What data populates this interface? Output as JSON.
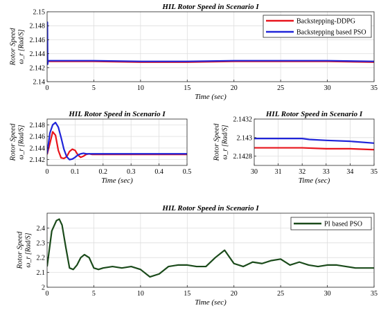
{
  "chart_data": [
    {
      "type": "line",
      "title": "HIL Rotor Speed in Scenario I",
      "xlabel": "Time (sec)",
      "ylabel": "Rotor Speed",
      "ylabel2": "ω_r [Rad/S]",
      "xlim": [
        0,
        35
      ],
      "ylim": [
        2.14,
        2.15
      ],
      "xticks": [
        "0",
        "5",
        "10",
        "15",
        "20",
        "25",
        "30",
        "35"
      ],
      "yticks": [
        "2.14",
        "2.142",
        "2.144",
        "2.146",
        "2.148",
        "2.15"
      ],
      "grid": true,
      "legend": "top-right",
      "series": [
        {
          "name": "Backstepping-DDPG",
          "color": "#e8141c",
          "x": [
            0,
            0.3,
            5,
            10,
            15,
            20,
            25,
            30,
            35
          ],
          "y": [
            2.1429,
            2.1429,
            2.1429,
            2.1428,
            2.1428,
            2.1429,
            2.1429,
            2.1429,
            2.1428
          ]
        },
        {
          "name": "Backstepping based PSO",
          "color": "#1f24d9",
          "x": [
            0,
            0.03,
            0.06,
            0.1,
            0.3,
            5,
            10,
            15,
            20,
            25,
            30,
            35
          ],
          "y": [
            2.143,
            2.1485,
            2.1425,
            2.143,
            2.143,
            2.143,
            2.1429,
            2.1429,
            2.143,
            2.143,
            2.143,
            2.1429
          ]
        }
      ]
    },
    {
      "type": "line",
      "title": "HIL Rotor Speed in Scenario I",
      "xlabel": "Time (sec)",
      "ylabel": "Rotor Speed",
      "ylabel2": "ω_r [Rad/S]",
      "xlim": [
        0,
        0.5
      ],
      "ylim": [
        2.141,
        2.149
      ],
      "xticks": [
        "0",
        "0.1",
        "0.2",
        "0.3",
        "0.4",
        "0.5"
      ],
      "yticks": [
        "2.142",
        "2.144",
        "2.146",
        "2.148"
      ],
      "grid": true,
      "series": [
        {
          "name": "Backstepping-DDPG",
          "color": "#e8141c",
          "x": [
            0,
            0.01,
            0.02,
            0.03,
            0.04,
            0.05,
            0.06,
            0.07,
            0.08,
            0.09,
            0.1,
            0.11,
            0.12,
            0.13,
            0.14,
            0.15,
            0.16,
            0.18,
            0.2,
            0.3,
            0.4,
            0.5
          ],
          "y": [
            2.1429,
            2.1448,
            2.1468,
            2.1462,
            2.1436,
            2.1423,
            2.1422,
            2.1425,
            2.1434,
            2.1438,
            2.1436,
            2.1428,
            2.1424,
            2.1426,
            2.1429,
            2.143,
            2.1429,
            2.1429,
            2.1429,
            2.1429,
            2.1429,
            2.1429
          ]
        },
        {
          "name": "Backstepping based PSO",
          "color": "#1f24d9",
          "x": [
            0,
            0.01,
            0.02,
            0.03,
            0.04,
            0.05,
            0.06,
            0.07,
            0.08,
            0.09,
            0.1,
            0.11,
            0.12,
            0.13,
            0.14,
            0.16,
            0.18,
            0.2,
            0.3,
            0.4,
            0.5
          ],
          "y": [
            2.143,
            2.1466,
            2.148,
            2.1484,
            2.1476,
            2.1458,
            2.1438,
            2.1425,
            2.142,
            2.1421,
            2.1424,
            2.1428,
            2.143,
            2.1431,
            2.143,
            2.143,
            2.143,
            2.143,
            2.143,
            2.143,
            2.143
          ]
        }
      ]
    },
    {
      "type": "line",
      "title": "HIL Rotor Speed in Scenario I",
      "xlabel": "Time (sec)",
      "ylabel": "Rotor Speed",
      "ylabel2": "ω_r [Rad/S]",
      "xlim": [
        30,
        35
      ],
      "ylim": [
        2.1427,
        2.1432
      ],
      "xticks": [
        "30",
        "31",
        "32",
        "33",
        "34",
        "35"
      ],
      "yticks": [
        "2.1428",
        "2.143",
        "2.1432"
      ],
      "grid": true,
      "series": [
        {
          "name": "Backstepping-DDPG",
          "color": "#e8141c",
          "x": [
            30,
            31,
            32,
            33,
            34,
            35
          ],
          "y": [
            2.14289,
            2.14289,
            2.14289,
            2.14288,
            2.14288,
            2.14287
          ]
        },
        {
          "name": "Backstepping based PSO",
          "color": "#1f24d9",
          "x": [
            30,
            31,
            32,
            32.3,
            33,
            34,
            35
          ],
          "y": [
            2.14299,
            2.14299,
            2.14299,
            2.14298,
            2.14297,
            2.14296,
            2.14294
          ]
        }
      ]
    },
    {
      "type": "line",
      "title": "HIL Rotor Speed in Scenario I",
      "xlabel": "Time (sec)",
      "ylabel": "Rotor Speed",
      "ylabel2": "ω_r [Rad/S]",
      "xlim": [
        0,
        35
      ],
      "ylim": [
        2.0,
        2.5
      ],
      "xticks": [
        "0",
        "5",
        "10",
        "15",
        "20",
        "25",
        "30",
        "35"
      ],
      "yticks": [
        "2",
        "2.1",
        "2.2",
        "2.3",
        "2.4"
      ],
      "grid": true,
      "legend": "top-right",
      "series": [
        {
          "name": "PI based PSO",
          "color": "#1a4a1a",
          "x": [
            0,
            0.5,
            1,
            1.3,
            1.6,
            2,
            2.4,
            2.8,
            3.2,
            3.6,
            4,
            4.5,
            5,
            5.5,
            6,
            7,
            8,
            9,
            10,
            11,
            12,
            13,
            14,
            15,
            16,
            17,
            18,
            19,
            20,
            21,
            22,
            23,
            24,
            25,
            26,
            27,
            28,
            29,
            30,
            31,
            32,
            33,
            34,
            35
          ],
          "y": [
            2.14,
            2.38,
            2.45,
            2.46,
            2.42,
            2.27,
            2.13,
            2.12,
            2.15,
            2.2,
            2.22,
            2.2,
            2.13,
            2.12,
            2.13,
            2.14,
            2.13,
            2.14,
            2.12,
            2.07,
            2.09,
            2.14,
            2.15,
            2.15,
            2.14,
            2.14,
            2.2,
            2.25,
            2.16,
            2.14,
            2.17,
            2.16,
            2.18,
            2.19,
            2.15,
            2.17,
            2.15,
            2.14,
            2.15,
            2.15,
            2.14,
            2.13,
            2.13,
            2.13
          ]
        }
      ]
    }
  ]
}
